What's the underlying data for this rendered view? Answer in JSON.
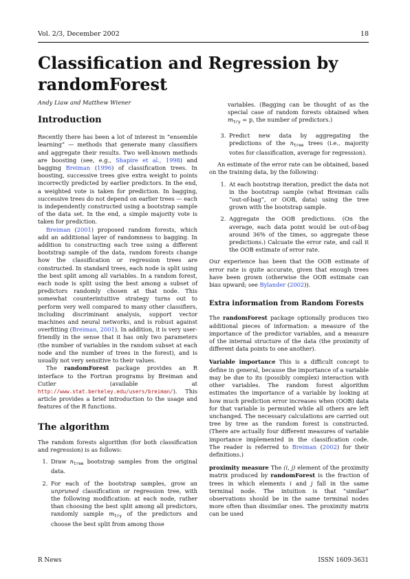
{
  "header": {
    "left": "Vol. 2/3, December 2002",
    "right": "18"
  },
  "title": "Classification and Regression by randomForest",
  "authors": "Andy Liaw and Matthew Wiener",
  "intro": {
    "heading": "Introduction",
    "p1_a": "Recently there has been a lot of interest in “ensemble learning” — methods that generate many classifiers and aggregate their results. Two well-known methods are boosting (see, e.g., ",
    "p1_link1": "Shapire et al., 1998",
    "p1_b": ") and bagging ",
    "p1_link2": "Breiman",
    "p1_c": " (",
    "p1_link3": "1996",
    "p1_d": ") of classification trees. In boosting, successive trees give extra weight to points incorrectly predicted by earlier predictors. In the end, a weighted vote is taken for prediction. In bagging, successive trees do not depend on earlier trees — each is independently constructed using a bootstrap sample of the data set. In the end, a simple majority vote is taken for prediction.",
    "p2_link1": "Breiman",
    "p2_a": " (",
    "p2_link2": "2001",
    "p2_b": ") proposed random forests, which add an additional layer of randomness to bagging. In addition to constructing each tree using a different bootstrap sample of the data, random forests change how the classification or regression trees are constructed. In standard trees, each node is split using the best split among all variables. In a random forest, each node is split using the best among a subset of predictors randomly chosen at that node. This somewhat counterintuitive strategy turns out to perform very well compared to many other classifiers, including discriminant analysis, support vector machines and neural networks, and is robust against overfitting (",
    "p2_link3": "Breiman, 2001",
    "p2_c": "). In addition, it is very user-friendly in the sense that it has only two parameters (the number of variables in the random subset at each node and the number of trees in the forest), and is usually not very sensitive to their values.",
    "p3_a": "The ",
    "p3_bold": "randomForest",
    "p3_b": " package provides an R interface to the Fortran programs by Breiman and Cutler (available at ",
    "p3_url": "http://www.stat.berkeley.edu/users/breiman/",
    "p3_c": "). This article provides a brief introduction to the usage and features of the R functions."
  },
  "algorithm": {
    "heading": "The algorithm",
    "intro": "The random forests algorithm (for both classification and regression) is as follows:",
    "step1_a": "Draw ",
    "step1_b": " bootstrap samples from the original data.",
    "step2_a": "For each of the bootstrap samples, grow an ",
    "step2_em": "unpruned",
    "step2_b": " classification or regression tree, with the following modification: at each node, rather than choosing the best split among all predictors, randomly sample ",
    "step2_c": " of the predictors and choose the best split from among those variables. (Bagging can be thought of as the special case of random forests obtained when ",
    "step2_d": ", the number of predictors.)",
    "step3_a": "Predict new data by aggregating the predictions of the ",
    "step3_b": " trees (i.e., majority votes for classification, average for regression)."
  },
  "math": {
    "n": "n",
    "tree": "tree",
    "m": "m",
    "try": "try",
    "eqp": " = p"
  },
  "right": {
    "est_intro": "An estimate of the error rate can be obtained, based on the training data, by the following:",
    "oob1": "At each bootstrap iteration, predict the data not in the bootstrap sample (what Breiman calls “out-of-bag”, or OOB, data) using the tree grown with the bootstrap sample.",
    "oob2": "Aggregate the OOB predictions. (On the average, each data point would be out-of-bag around 36% of the times, so aggregate these predictions.) Calcuate the error rate, and call it the OOB estimate of error rate.",
    "exp_a": "Our experience has been that the OOB estimate of error rate is quite accurate, given that enough trees have been grown (otherwise the OOB estimate can bias upward; see ",
    "exp_link": "Bylander",
    "exp_b": " (",
    "exp_link2": "2002",
    "exp_c": ")).",
    "extra_heading": "Extra information from Random Forests",
    "extra_a": "The ",
    "extra_bold": "randomForest",
    "extra_b": " package optionally produces two additional pieces of information: a measure of the importance of the predictor variables, and a measure of the internal structure of the data (the proximity of different data points to one another).",
    "vi_term": "Variable importance",
    "vi_text_a": " This is a difficult concept to define in general, because the importance of a variable may be due to its (possibly complex) interaction with other variables. The random forest algorithm estimates the importance of a variable by looking at how much prediction error increases when (OOB) data for that variable is permuted while all others are left unchanged. The necessary calculations are carried out tree by tree as the random forest is constructed. (There are actually four different measures of variable importance implemented in the classification code. The reader is referred to ",
    "vi_link": "Breiman",
    "vi_text_b": " (",
    "vi_link2": "2002",
    "vi_text_c": ") for their definitions.)",
    "pm_term": "proximity measure",
    "pm_a": " The ",
    "pm_ij": "(i, j)",
    "pm_b": " element of the proximity matrix produced by ",
    "pm_bold": "randomForest",
    "pm_c": " is the fraction of trees in which elements ",
    "pm_i": "i",
    "pm_d": " and ",
    "pm_j": "j",
    "pm_e": " fall in the same terminal node. The intuition is that “similar” observations should be in the same terminal nodes more often than dissimilar ones. The proximity matrix can be used"
  },
  "footer": {
    "left": "R News",
    "right": "ISSN 1609-3631"
  },
  "colors": {
    "link": "#2d4bd8",
    "url": "#b01818"
  }
}
